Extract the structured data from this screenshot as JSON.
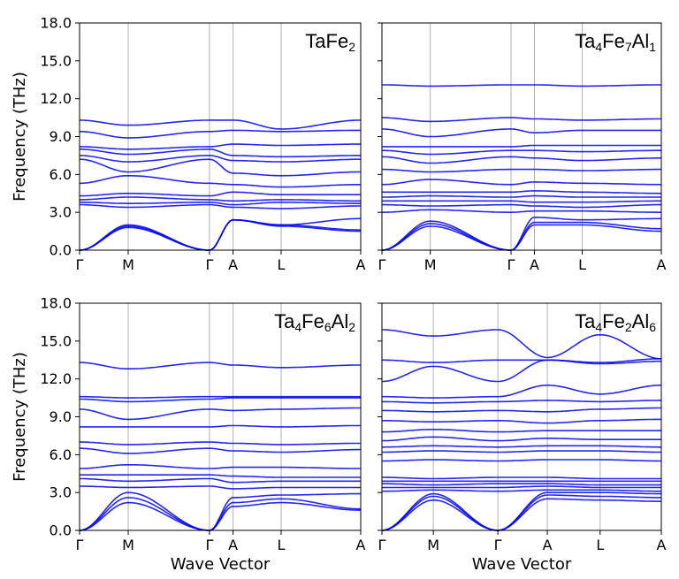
{
  "chart_data": [
    {
      "type": "line",
      "title": "TaFe2",
      "title_parts": [
        [
          "Ta",
          false
        ],
        [
          "Fe",
          false
        ],
        [
          "2",
          true
        ]
      ],
      "ylabel": "Frequency (THz)",
      "xlabel": "",
      "ylim": [
        0,
        18
      ],
      "yticks": [
        "0.0",
        "3.0",
        "6.0",
        "9.0",
        "12.0",
        "15.0",
        "18.0"
      ],
      "k_points": [
        {
          "label": "Γ",
          "pos": 0.0
        },
        {
          "label": "M",
          "pos": 0.173
        },
        {
          "label": "Γ",
          "pos": 0.462
        },
        {
          "label": "A",
          "pos": 0.546
        },
        {
          "label": "L",
          "pos": 0.717
        },
        {
          "label": "A",
          "pos": 1.0
        }
      ],
      "bands_at_k": [
        [
          0,
          1.8,
          0,
          2.4,
          1.9,
          1.5
        ],
        [
          0,
          1.9,
          0,
          2.4,
          2.0,
          1.6
        ],
        [
          0,
          2.0,
          0,
          2.4,
          2.0,
          2.5
        ],
        [
          3.6,
          3.4,
          3.6,
          3.4,
          3.3,
          3.5
        ],
        [
          3.8,
          3.7,
          3.8,
          3.6,
          3.8,
          3.7
        ],
        [
          4.0,
          4.2,
          4.0,
          3.9,
          4.0,
          3.9
        ],
        [
          4.3,
          4.5,
          4.3,
          4.6,
          4.4,
          4.4
        ],
        [
          5.3,
          5.9,
          5.3,
          5.2,
          5.0,
          5.2
        ],
        [
          7.2,
          6.2,
          7.2,
          6.1,
          5.9,
          6.2
        ],
        [
          7.5,
          7.0,
          7.5,
          7.1,
          7.0,
          7.2
        ],
        [
          8.0,
          7.6,
          8.0,
          7.5,
          7.4,
          7.5
        ],
        [
          8.2,
          8.0,
          8.2,
          8.4,
          8.3,
          8.4
        ],
        [
          9.4,
          8.9,
          9.4,
          9.5,
          9.4,
          9.5
        ],
        [
          10.3,
          9.9,
          10.3,
          10.3,
          9.6,
          10.3
        ]
      ]
    },
    {
      "type": "line",
      "title": "Ta4Fe7Al1",
      "title_parts": [
        [
          "Ta",
          false
        ],
        [
          "4",
          true
        ],
        [
          "Fe",
          false
        ],
        [
          "7",
          true
        ],
        [
          "Al",
          false
        ],
        [
          "1",
          true
        ]
      ],
      "ylabel": "",
      "xlabel": "",
      "ylim": [
        0,
        18
      ],
      "yticks": [
        "0.0",
        "3.0",
        "6.0",
        "9.0",
        "12.0",
        "15.0",
        "18.0"
      ],
      "k_points": [
        {
          "label": "Γ",
          "pos": 0.0
        },
        {
          "label": "M",
          "pos": 0.173
        },
        {
          "label": "Γ",
          "pos": 0.462
        },
        {
          "label": "A",
          "pos": 0.546
        },
        {
          "label": "L",
          "pos": 0.717
        },
        {
          "label": "A",
          "pos": 1.0
        }
      ],
      "bands_at_k": [
        [
          0,
          1.9,
          0,
          2.0,
          2.0,
          1.5
        ],
        [
          0,
          2.1,
          0,
          2.2,
          2.2,
          1.7
        ],
        [
          0,
          2.3,
          0,
          2.6,
          2.4,
          2.5
        ],
        [
          3.0,
          3.2,
          3.0,
          3.1,
          3.1,
          3.0
        ],
        [
          3.6,
          3.5,
          3.6,
          3.5,
          3.4,
          3.6
        ],
        [
          3.9,
          3.9,
          3.9,
          3.8,
          3.8,
          3.9
        ],
        [
          4.2,
          4.3,
          4.2,
          4.3,
          4.2,
          4.2
        ],
        [
          4.6,
          4.6,
          4.6,
          4.7,
          4.6,
          4.5
        ],
        [
          5.2,
          5.6,
          5.2,
          5.4,
          5.3,
          5.2
        ],
        [
          6.4,
          6.2,
          6.4,
          6.4,
          6.3,
          6.4
        ],
        [
          7.4,
          6.9,
          7.4,
          7.3,
          7.1,
          7.3
        ],
        [
          7.9,
          7.6,
          7.9,
          7.9,
          7.8,
          7.9
        ],
        [
          8.2,
          8.2,
          8.2,
          8.3,
          8.3,
          8.3
        ],
        [
          9.6,
          9.0,
          9.6,
          9.3,
          9.5,
          9.5
        ],
        [
          10.5,
          10.2,
          10.5,
          10.4,
          10.3,
          10.4
        ],
        [
          13.1,
          13.0,
          13.1,
          13.1,
          13.0,
          13.1
        ]
      ]
    },
    {
      "type": "line",
      "title": "Ta4Fe6Al2",
      "title_parts": [
        [
          "Ta",
          false
        ],
        [
          "4",
          true
        ],
        [
          "Fe",
          false
        ],
        [
          "6",
          true
        ],
        [
          "Al",
          false
        ],
        [
          "2",
          true
        ]
      ],
      "ylabel": "Frequency (THz)",
      "xlabel": "Wave Vector",
      "ylim": [
        0,
        18
      ],
      "yticks": [
        "0.0",
        "3.0",
        "6.0",
        "9.0",
        "12.0",
        "15.0",
        "18.0"
      ],
      "k_points": [
        {
          "label": "Γ",
          "pos": 0.0
        },
        {
          "label": "M",
          "pos": 0.173
        },
        {
          "label": "Γ",
          "pos": 0.462
        },
        {
          "label": "A",
          "pos": 0.546
        },
        {
          "label": "L",
          "pos": 0.717
        },
        {
          "label": "A",
          "pos": 1.0
        }
      ],
      "bands_at_k": [
        [
          0,
          2.2,
          0,
          1.9,
          2.2,
          1.6
        ],
        [
          0,
          2.6,
          0,
          2.2,
          2.5,
          1.7
        ],
        [
          0,
          3.0,
          0,
          2.6,
          2.8,
          2.9
        ],
        [
          3.5,
          3.4,
          3.5,
          3.3,
          3.4,
          3.4
        ],
        [
          4.1,
          3.9,
          4.1,
          3.8,
          3.9,
          3.9
        ],
        [
          4.4,
          4.4,
          4.4,
          4.3,
          4.2,
          4.2
        ],
        [
          4.9,
          5.2,
          4.9,
          5.0,
          5.0,
          4.9
        ],
        [
          6.5,
          6.1,
          6.5,
          6.3,
          6.2,
          6.4
        ],
        [
          7.0,
          6.8,
          7.0,
          6.9,
          6.8,
          6.9
        ],
        [
          8.2,
          8.2,
          8.2,
          8.3,
          8.2,
          8.3
        ],
        [
          9.6,
          8.8,
          9.6,
          9.5,
          9.6,
          9.7
        ],
        [
          10.4,
          10.2,
          10.4,
          10.5,
          10.5,
          10.5
        ],
        [
          10.6,
          10.5,
          10.6,
          10.6,
          10.6,
          10.6
        ],
        [
          13.3,
          12.8,
          13.3,
          13.1,
          12.9,
          13.1
        ]
      ]
    },
    {
      "type": "line",
      "title": "Ta4Fe2Al6",
      "title_parts": [
        [
          "Ta",
          false
        ],
        [
          "4",
          true
        ],
        [
          "Fe",
          false
        ],
        [
          "2",
          true
        ],
        [
          "Al",
          false
        ],
        [
          "6",
          true
        ]
      ],
      "ylabel": "",
      "xlabel": "Wave Vector",
      "ylim": [
        0,
        18
      ],
      "yticks": [
        "0.0",
        "3.0",
        "6.0",
        "9.0",
        "12.0",
        "15.0",
        "18.0"
      ],
      "k_points": [
        {
          "label": "Γ",
          "pos": 0.0
        },
        {
          "label": "M",
          "pos": 0.184
        },
        {
          "label": "Γ",
          "pos": 0.415
        },
        {
          "label": "A",
          "pos": 0.592
        },
        {
          "label": "L",
          "pos": 0.781
        },
        {
          "label": "A",
          "pos": 1.0
        }
      ],
      "bands_at_k": [
        [
          0,
          2.4,
          0,
          2.5,
          2.4,
          2.3
        ],
        [
          0,
          2.7,
          0,
          2.8,
          2.7,
          2.6
        ],
        [
          0,
          2.9,
          0,
          3.0,
          3.0,
          2.9
        ],
        [
          3.1,
          3.2,
          3.1,
          3.2,
          3.2,
          3.1
        ],
        [
          3.4,
          3.4,
          3.4,
          3.5,
          3.4,
          3.4
        ],
        [
          3.7,
          3.6,
          3.7,
          3.7,
          3.6,
          3.6
        ],
        [
          3.9,
          3.9,
          3.9,
          3.9,
          3.9,
          3.9
        ],
        [
          4.2,
          4.1,
          4.2,
          4.2,
          4.1,
          4.1
        ],
        [
          5.5,
          5.6,
          5.5,
          5.6,
          5.6,
          5.5
        ],
        [
          6.2,
          6.3,
          6.2,
          6.3,
          6.3,
          6.2
        ],
        [
          6.6,
          6.7,
          6.6,
          6.7,
          6.7,
          6.6
        ],
        [
          7.1,
          7.4,
          7.1,
          7.3,
          7.2,
          7.2
        ],
        [
          7.8,
          8.0,
          7.8,
          7.9,
          7.9,
          7.9
        ],
        [
          8.7,
          8.6,
          8.7,
          8.5,
          8.7,
          8.8
        ],
        [
          9.5,
          9.4,
          9.5,
          9.4,
          9.6,
          9.7
        ],
        [
          10.2,
          10.1,
          10.2,
          10.3,
          10.2,
          10.3
        ],
        [
          10.6,
          10.5,
          10.6,
          11.5,
          10.8,
          11.5
        ],
        [
          11.8,
          13.0,
          11.8,
          13.5,
          13.2,
          13.4
        ],
        [
          13.5,
          13.3,
          13.5,
          13.5,
          13.3,
          13.6
        ],
        [
          15.9,
          15.4,
          15.9,
          13.7,
          15.5,
          13.6
        ]
      ]
    }
  ]
}
